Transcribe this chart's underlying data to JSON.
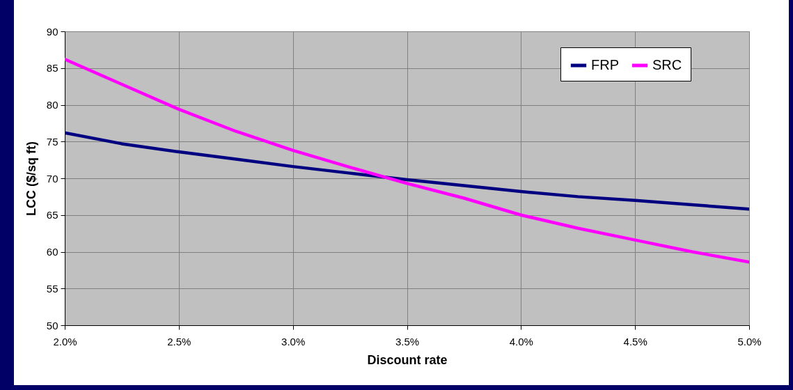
{
  "chart_data": {
    "type": "line",
    "xlabel": "Discount rate",
    "ylabel": "LCC ($/sq ft)",
    "x": [
      2.0,
      2.25,
      2.5,
      2.75,
      3.0,
      3.25,
      3.5,
      3.75,
      4.0,
      4.25,
      4.5,
      4.75,
      5.0
    ],
    "series": [
      {
        "name": "FRP",
        "color": "#000080",
        "values": [
          76.2,
          74.7,
          73.6,
          72.6,
          71.6,
          70.7,
          69.8,
          69.0,
          68.2,
          67.5,
          67.0,
          66.4,
          65.8
        ]
      },
      {
        "name": "SRC",
        "color": "#ff00ff",
        "values": [
          86.2,
          82.8,
          79.4,
          76.4,
          73.8,
          71.5,
          69.3,
          67.3,
          65.0,
          63.2,
          61.6,
          60.0,
          58.6
        ]
      }
    ],
    "xlim": [
      2.0,
      5.0
    ],
    "xticks": [
      {
        "value": 2.0,
        "label": "2.0%"
      },
      {
        "value": 2.5,
        "label": "2.5%"
      },
      {
        "value": 3.0,
        "label": "3.0%"
      },
      {
        "value": 3.5,
        "label": "3.5%"
      },
      {
        "value": 4.0,
        "label": "4.0%"
      },
      {
        "value": 4.5,
        "label": "4.5%"
      },
      {
        "value": 5.0,
        "label": "5.0%"
      }
    ],
    "ylim": [
      50,
      90
    ],
    "yticks": [
      50,
      55,
      60,
      65,
      70,
      75,
      80,
      85,
      90
    ],
    "grid": true,
    "legend": "top right",
    "marker": "none",
    "line_style": "solid"
  }
}
